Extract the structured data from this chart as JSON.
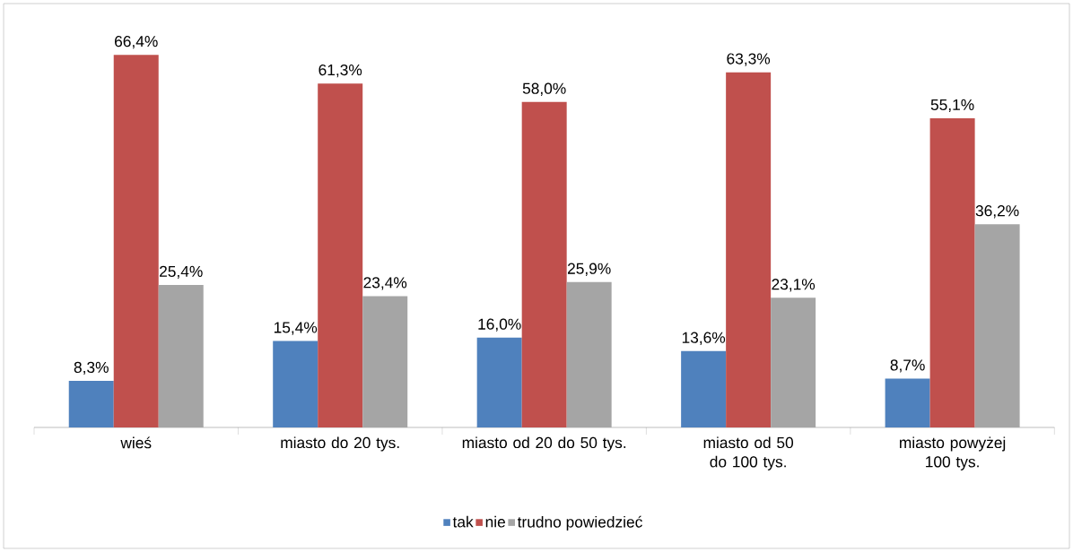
{
  "chart_data": {
    "type": "bar",
    "categories": [
      "wieś",
      "miasto do 20 tys.",
      "miasto od 20 do 50 tys.",
      "miasto od 50 do 100 tys.",
      "miasto powyżej 100 tys."
    ],
    "series": [
      {
        "name": "tak",
        "color": "#4f81bd",
        "values": [
          8.3,
          15.4,
          16.0,
          13.6,
          8.7
        ],
        "value_labels": [
          "8,3%",
          "15,4%",
          "16,0%",
          "13,6%",
          "8,7%"
        ]
      },
      {
        "name": "nie",
        "color": "#c0504d",
        "values": [
          66.4,
          61.3,
          58.0,
          63.3,
          55.1
        ],
        "value_labels": [
          "66,4%",
          "61,3%",
          "58,0%",
          "63,3%",
          "55,1%"
        ]
      },
      {
        "name": "trudno powiedzieć",
        "color": "#a5a5a5",
        "values": [
          25.4,
          23.4,
          25.9,
          23.1,
          36.2
        ],
        "value_labels": [
          "25,4%",
          "23,4%",
          "25,9%",
          "23,1%",
          "36,2%"
        ]
      }
    ],
    "legend": "bottom"
  }
}
